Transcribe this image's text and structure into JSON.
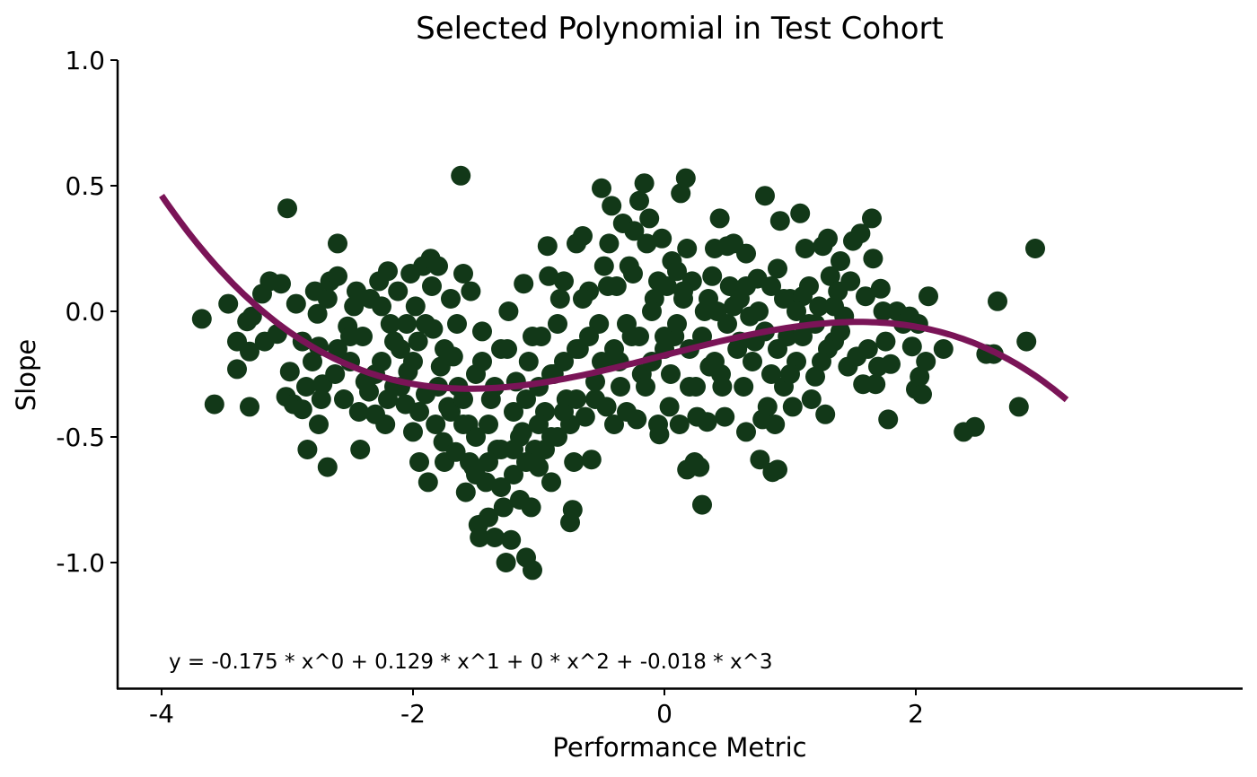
{
  "chart_data": {
    "type": "scatter",
    "title": "Selected Polynomial in Test Cohort",
    "xlabel": "Performance Metric",
    "ylabel": "Slope",
    "xlim": [
      -4.35,
      4.6
    ],
    "ylim": [
      -1.5,
      1.0
    ],
    "x_ticks": [
      -4,
      -2,
      0,
      2
    ],
    "x_tick_labels": [
      "-4",
      "-2",
      "0",
      "2"
    ],
    "y_ticks": [
      -1.0,
      -0.5,
      0.0,
      0.5,
      1.0
    ],
    "y_tick_labels": [
      "-1.0",
      "-0.5",
      "0.0",
      "0.5",
      "1.0"
    ],
    "grid": false,
    "point_color": "#123818",
    "curve_color": "#7a1457",
    "annotation": "y = -0.175 * x^0 + 0.129 * x^1 + 0 * x^2 + -0.018 * x^3",
    "fit": {
      "coefficients": [
        -0.175,
        0.129,
        0,
        -0.018
      ],
      "x_range": [
        -4.0,
        3.2
      ]
    },
    "points": [
      [
        -3.68,
        -0.03
      ],
      [
        -3.47,
        0.03
      ],
      [
        -3.4,
        -0.12
      ],
      [
        -3.4,
        -0.23
      ],
      [
        -3.58,
        -0.37
      ],
      [
        -3.3,
        -0.38
      ],
      [
        -3.32,
        -0.04
      ],
      [
        -3.28,
        -0.02
      ],
      [
        -3.3,
        -0.16
      ],
      [
        -3.18,
        -0.12
      ],
      [
        -3.2,
        0.07
      ],
      [
        -3.14,
        0.12
      ],
      [
        -3.08,
        -0.09
      ],
      [
        -3.05,
        0.11
      ],
      [
        -3.01,
        -0.34
      ],
      [
        -2.98,
        -0.24
      ],
      [
        -3.0,
        0.41
      ],
      [
        -2.95,
        -0.37
      ],
      [
        -2.93,
        0.03
      ],
      [
        -2.88,
        -0.39
      ],
      [
        -2.88,
        -0.12
      ],
      [
        -2.85,
        -0.3
      ],
      [
        -2.8,
        -0.2
      ],
      [
        -2.84,
        -0.55
      ],
      [
        -2.78,
        0.08
      ],
      [
        -2.76,
        -0.01
      ],
      [
        -2.75,
        -0.14
      ],
      [
        -2.75,
        -0.45
      ],
      [
        -2.73,
        -0.35
      ],
      [
        -2.72,
        -0.29
      ],
      [
        -2.68,
        0.05
      ],
      [
        -2.68,
        -0.62
      ],
      [
        -2.66,
        0.12
      ],
      [
        -2.62,
        -0.25
      ],
      [
        -2.6,
        0.27
      ],
      [
        -2.6,
        0.14
      ],
      [
        -2.55,
        -0.35
      ],
      [
        -2.52,
        -0.06
      ],
      [
        -2.5,
        -0.1
      ],
      [
        -2.47,
        0.02
      ],
      [
        -2.43,
        -0.4
      ],
      [
        -2.42,
        -0.55
      ],
      [
        -2.38,
        -0.28
      ],
      [
        -2.34,
        0.05
      ],
      [
        -2.3,
        -0.41
      ],
      [
        -2.27,
        0.12
      ],
      [
        -2.25,
        -0.2
      ],
      [
        -2.22,
        -0.45
      ],
      [
        -2.2,
        0.16
      ],
      [
        -2.18,
        -0.05
      ],
      [
        -2.15,
        -0.3
      ],
      [
        -2.12,
        0.08
      ],
      [
        -2.1,
        -0.15
      ],
      [
        -2.06,
        -0.37
      ],
      [
        -2.04,
        -0.24
      ],
      [
        -2.02,
        0.15
      ],
      [
        -2.0,
        -0.48
      ],
      [
        -1.98,
        0.02
      ],
      [
        -1.96,
        -0.12
      ],
      [
        -1.95,
        -0.6
      ],
      [
        -1.92,
        0.18
      ],
      [
        -1.9,
        -0.33
      ],
      [
        -1.88,
        -0.68
      ],
      [
        -1.86,
        0.21
      ],
      [
        -1.84,
        -0.07
      ],
      [
        -1.82,
        -0.45
      ],
      [
        -1.8,
        0.18
      ],
      [
        -1.78,
        -0.22
      ],
      [
        -1.76,
        -0.52
      ],
      [
        -1.75,
        -0.6
      ],
      [
        -1.72,
        -0.38
      ],
      [
        -1.7,
        0.05
      ],
      [
        -1.68,
        -0.18
      ],
      [
        -1.66,
        -0.56
      ],
      [
        -1.64,
        -0.3
      ],
      [
        -1.62,
        0.54
      ],
      [
        -1.6,
        0.15
      ],
      [
        -1.58,
        -0.72
      ],
      [
        -1.56,
        -0.45
      ],
      [
        -1.54,
        0.08
      ],
      [
        -1.52,
        -0.62
      ],
      [
        -1.5,
        -0.25
      ],
      [
        -1.48,
        -0.85
      ],
      [
        -1.47,
        -0.9
      ],
      [
        -1.45,
        -0.08
      ],
      [
        -1.42,
        -0.68
      ],
      [
        -1.4,
        -0.82
      ],
      [
        -1.38,
        -0.35
      ],
      [
        -1.35,
        -0.9
      ],
      [
        -1.33,
        -0.55
      ],
      [
        -1.3,
        -0.15
      ],
      [
        -1.28,
        -0.78
      ],
      [
        -1.26,
        -1.0
      ],
      [
        -1.24,
        0.0
      ],
      [
        -1.22,
        -0.91
      ],
      [
        -1.2,
        -0.65
      ],
      [
        -1.18,
        -0.28
      ],
      [
        -1.15,
        -0.75
      ],
      [
        -1.13,
        -0.48
      ],
      [
        -1.12,
        0.11
      ],
      [
        -1.1,
        -0.98
      ],
      [
        -1.08,
        -0.2
      ],
      [
        -1.06,
        -0.78
      ],
      [
        -1.05,
        -1.03
      ],
      [
        -1.03,
        -0.55
      ],
      [
        -1.0,
        -0.62
      ],
      [
        -0.98,
        -0.1
      ],
      [
        -0.95,
        -0.4
      ],
      [
        -0.93,
        0.26
      ],
      [
        -0.92,
        0.14
      ],
      [
        -0.9,
        -0.68
      ],
      [
        -0.88,
        -0.25
      ],
      [
        -0.85,
        -0.5
      ],
      [
        -0.83,
        0.05
      ],
      [
        -0.8,
        0.12
      ],
      [
        -0.78,
        -0.35
      ],
      [
        -0.75,
        -0.84
      ],
      [
        -0.73,
        -0.79
      ],
      [
        -0.72,
        -0.6
      ],
      [
        -0.7,
        0.27
      ],
      [
        -0.68,
        -0.15
      ],
      [
        -0.65,
        0.3
      ],
      [
        -0.63,
        -0.42
      ],
      [
        -0.6,
        0.08
      ],
      [
        -0.58,
        -0.59
      ],
      [
        -0.55,
        -0.28
      ],
      [
        -0.52,
        -0.05
      ],
      [
        -0.5,
        0.49
      ],
      [
        -0.48,
        0.18
      ],
      [
        -0.46,
        -0.38
      ],
      [
        -0.44,
        0.27
      ],
      [
        -0.42,
        0.42
      ],
      [
        -0.4,
        -0.45
      ],
      [
        -0.38,
        0.1
      ],
      [
        -0.36,
        -0.2
      ],
      [
        -0.33,
        0.35
      ],
      [
        -0.3,
        -0.4
      ],
      [
        -0.28,
        0.18
      ],
      [
        -0.26,
        -0.1
      ],
      [
        -0.24,
        0.32
      ],
      [
        -0.22,
        -0.43
      ],
      [
        -0.2,
        0.44
      ],
      [
        -0.18,
        -0.25
      ],
      [
        -0.16,
        0.51
      ],
      [
        -0.14,
        0.27
      ],
      [
        -0.12,
        0.37
      ],
      [
        -0.1,
        -0.2
      ],
      [
        -0.08,
        0.05
      ],
      [
        -0.05,
        -0.45
      ],
      [
        -0.04,
        -0.49
      ],
      [
        -0.02,
        0.29
      ],
      [
        0.0,
        -0.15
      ],
      [
        0.02,
        0.1
      ],
      [
        0.04,
        -0.38
      ],
      [
        0.06,
        0.2
      ],
      [
        0.08,
        -0.1
      ],
      [
        0.1,
        0.16
      ],
      [
        0.12,
        -0.45
      ],
      [
        0.13,
        0.47
      ],
      [
        0.15,
        0.05
      ],
      [
        0.17,
        0.53
      ],
      [
        0.18,
        0.25
      ],
      [
        0.18,
        -0.63
      ],
      [
        0.2,
        -0.3
      ],
      [
        0.22,
        0.12
      ],
      [
        0.24,
        -0.6
      ],
      [
        0.26,
        -0.42
      ],
      [
        0.28,
        -0.62
      ],
      [
        0.3,
        -0.77
      ],
      [
        0.32,
        0.0
      ],
      [
        0.34,
        -0.44
      ],
      [
        0.36,
        -0.22
      ],
      [
        0.38,
        0.14
      ],
      [
        0.4,
        0.25
      ],
      [
        0.42,
        0.0
      ],
      [
        0.44,
        0.37
      ],
      [
        0.46,
        -0.3
      ],
      [
        0.48,
        -0.42
      ],
      [
        0.5,
        0.26
      ],
      [
        0.52,
        0.1
      ],
      [
        0.55,
        0.27
      ],
      [
        0.58,
        -0.15
      ],
      [
        0.6,
        0.05
      ],
      [
        0.63,
        -0.3
      ],
      [
        0.65,
        0.23
      ],
      [
        0.65,
        -0.48
      ],
      [
        0.68,
        -0.02
      ],
      [
        0.72,
        -0.12
      ],
      [
        0.74,
        0.13
      ],
      [
        0.76,
        -0.59
      ],
      [
        0.78,
        -0.43
      ],
      [
        0.8,
        0.46
      ],
      [
        0.82,
        -0.38
      ],
      [
        0.85,
        0.1
      ],
      [
        0.86,
        -0.64
      ],
      [
        0.88,
        -0.45
      ],
      [
        0.9,
        0.17
      ],
      [
        0.9,
        -0.63
      ],
      [
        0.92,
        0.36
      ],
      [
        0.95,
        -0.3
      ],
      [
        0.98,
        -0.1
      ],
      [
        1.0,
        0.05
      ],
      [
        1.02,
        -0.38
      ],
      [
        1.05,
        -0.2
      ],
      [
        1.08,
        0.39
      ],
      [
        1.1,
        0.06
      ],
      [
        1.12,
        0.25
      ],
      [
        1.15,
        -0.05
      ],
      [
        1.17,
        -0.35
      ],
      [
        1.2,
        -0.26
      ],
      [
        1.23,
        0.02
      ],
      [
        1.26,
        0.26
      ],
      [
        1.28,
        -0.41
      ],
      [
        1.3,
        0.29
      ],
      [
        1.32,
        0.14
      ],
      [
        1.35,
        -0.12
      ],
      [
        1.38,
        0.08
      ],
      [
        1.4,
        0.2
      ],
      [
        1.43,
        -0.02
      ],
      [
        1.46,
        -0.22
      ],
      [
        1.48,
        0.12
      ],
      [
        1.5,
        0.28
      ],
      [
        1.53,
        -0.18
      ],
      [
        1.56,
        0.31
      ],
      [
        1.58,
        -0.29
      ],
      [
        1.6,
        0.06
      ],
      [
        1.62,
        -0.15
      ],
      [
        1.65,
        0.37
      ],
      [
        1.66,
        0.21
      ],
      [
        1.68,
        -0.29
      ],
      [
        1.7,
        -0.22
      ],
      [
        1.72,
        0.09
      ],
      [
        1.74,
        0.0
      ],
      [
        1.76,
        -0.12
      ],
      [
        1.78,
        -0.43
      ],
      [
        1.8,
        -0.21
      ],
      [
        1.85,
        0.0
      ],
      [
        1.9,
        -0.05
      ],
      [
        1.95,
        -0.02
      ],
      [
        1.97,
        -0.14
      ],
      [
        2.0,
        -0.31
      ],
      [
        2.02,
        -0.05
      ],
      [
        2.03,
        -0.26
      ],
      [
        2.05,
        -0.33
      ],
      [
        2.08,
        -0.2
      ],
      [
        2.1,
        0.06
      ],
      [
        2.22,
        -0.15
      ],
      [
        2.38,
        -0.48
      ],
      [
        2.47,
        -0.46
      ],
      [
        2.56,
        -0.17
      ],
      [
        2.62,
        -0.17
      ],
      [
        2.65,
        0.04
      ],
      [
        2.82,
        -0.38
      ],
      [
        2.88,
        -0.12
      ],
      [
        2.95,
        0.25
      ],
      [
        -2.5,
        -0.2
      ],
      [
        -2.4,
        -0.1
      ],
      [
        -2.3,
        -0.25
      ],
      [
        -2.2,
        -0.35
      ],
      [
        -2.1,
        -0.3
      ],
      [
        -2.0,
        -0.2
      ],
      [
        -1.9,
        -0.05
      ],
      [
        -1.8,
        -0.3
      ],
      [
        -1.7,
        -0.4
      ],
      [
        -1.6,
        -0.35
      ],
      [
        -1.5,
        -0.5
      ],
      [
        -1.4,
        -0.45
      ],
      [
        -1.3,
        -0.55
      ],
      [
        -1.2,
        -0.4
      ],
      [
        -1.1,
        -0.35
      ],
      [
        -1.0,
        -0.3
      ],
      [
        -0.9,
        -0.25
      ],
      [
        -0.8,
        -0.2
      ],
      [
        -0.7,
        -0.15
      ],
      [
        -0.6,
        -0.1
      ],
      [
        -0.5,
        -0.2
      ],
      [
        -0.4,
        -0.15
      ],
      [
        -0.3,
        -0.05
      ],
      [
        -0.2,
        -0.1
      ],
      [
        -0.1,
        0.0
      ],
      [
        0.0,
        -0.1
      ],
      [
        0.1,
        -0.05
      ],
      [
        0.2,
        -0.15
      ],
      [
        0.3,
        -0.1
      ],
      [
        0.4,
        -0.2
      ],
      [
        0.5,
        -0.05
      ],
      [
        0.6,
        -0.12
      ],
      [
        0.7,
        -0.2
      ],
      [
        0.8,
        -0.08
      ],
      [
        0.9,
        -0.15
      ],
      [
        1.0,
        -0.25
      ],
      [
        1.1,
        -0.1
      ],
      [
        1.2,
        -0.05
      ],
      [
        1.3,
        -0.15
      ],
      [
        1.4,
        -0.08
      ],
      [
        -2.6,
        -0.15
      ],
      [
        -2.35,
        -0.32
      ],
      [
        -2.15,
        -0.12
      ],
      [
        -1.95,
        -0.4
      ],
      [
        -1.75,
        -0.15
      ],
      [
        -1.55,
        -0.6
      ],
      [
        -1.35,
        -0.3
      ],
      [
        -1.15,
        -0.5
      ],
      [
        -0.95,
        -0.55
      ],
      [
        -0.75,
        -0.45
      ],
      [
        -0.55,
        -0.35
      ],
      [
        -0.35,
        -0.3
      ],
      [
        -0.15,
        -0.3
      ],
      [
        0.05,
        -0.25
      ],
      [
        0.25,
        -0.3
      ],
      [
        0.45,
        -0.25
      ],
      [
        0.65,
        0.1
      ],
      [
        0.85,
        -0.25
      ],
      [
        1.05,
        0.0
      ],
      [
        1.25,
        -0.2
      ],
      [
        -2.45,
        0.08
      ],
      [
        -2.25,
        0.02
      ],
      [
        -2.05,
        -0.05
      ],
      [
        -1.85,
        0.1
      ],
      [
        -1.65,
        -0.05
      ],
      [
        -1.45,
        -0.2
      ],
      [
        -1.25,
        -0.15
      ],
      [
        -1.05,
        -0.1
      ],
      [
        -0.85,
        -0.05
      ],
      [
        -0.65,
        0.05
      ],
      [
        -0.45,
        0.1
      ],
      [
        -0.25,
        0.15
      ],
      [
        -0.05,
        0.12
      ],
      [
        0.15,
        0.08
      ],
      [
        0.35,
        0.05
      ],
      [
        0.55,
        0.02
      ],
      [
        0.75,
        0.0
      ],
      [
        0.95,
        0.05
      ],
      [
        1.15,
        0.1
      ],
      [
        1.35,
        0.02
      ],
      [
        -1.6,
        -0.45
      ],
      [
        -1.5,
        -0.65
      ],
      [
        -1.4,
        -0.6
      ],
      [
        -1.3,
        -0.7
      ],
      [
        -1.2,
        -0.55
      ],
      [
        -1.1,
        -0.6
      ],
      [
        -1.0,
        -0.45
      ],
      [
        -0.9,
        -0.5
      ],
      [
        -0.8,
        -0.4
      ],
      [
        -0.7,
        -0.35
      ]
    ]
  }
}
